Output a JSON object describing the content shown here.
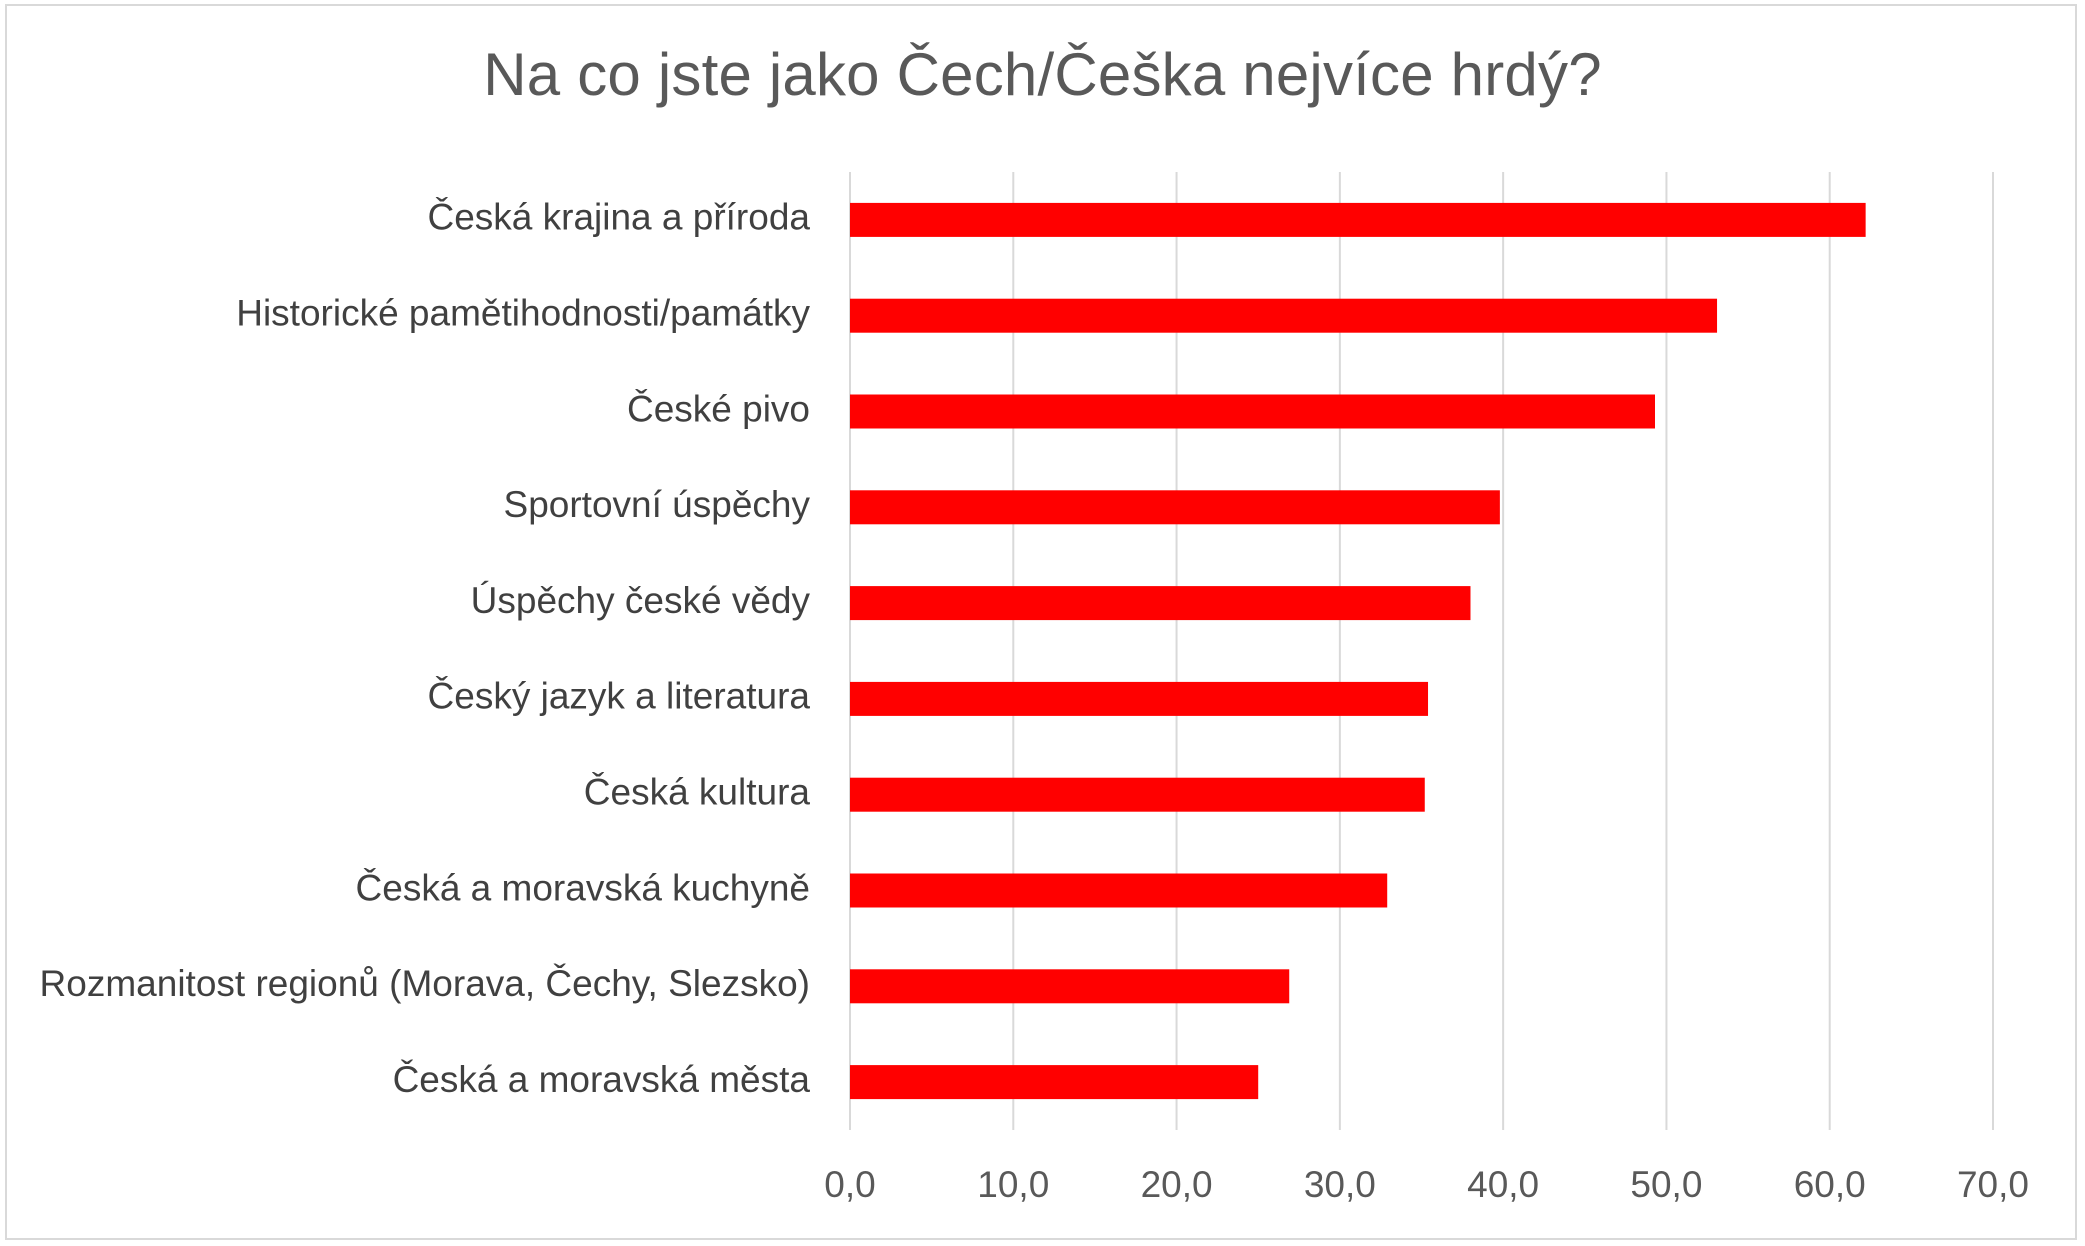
{
  "chart_data": {
    "type": "bar",
    "orientation": "horizontal",
    "title": "Na co jste jako Čech/Češka nejvíce hrdý?",
    "xlabel": "",
    "ylabel": "",
    "categories": [
      "Česká krajina a příroda",
      "Historické pamětihodnosti/památky",
      "České pivo",
      "Sportovní úspěchy",
      "Úspěchy české vědy",
      "Český jazyk a literatura",
      "Česká kultura",
      "Česká a moravská kuchyně",
      "Rozmanitost regionů (Morava, Čechy, Slezsko)",
      "Česká a moravská města"
    ],
    "values": [
      62.2,
      53.1,
      49.3,
      39.8,
      38.0,
      35.4,
      35.2,
      32.9,
      26.9,
      25.0
    ],
    "xlim": [
      0,
      70
    ],
    "xticks": [
      "0,0",
      "10,0",
      "20,0",
      "30,0",
      "40,0",
      "50,0",
      "60,0",
      "70,0"
    ],
    "grid": true,
    "bar_color": "#ff0000",
    "grid_color": "#d9d9d9"
  }
}
